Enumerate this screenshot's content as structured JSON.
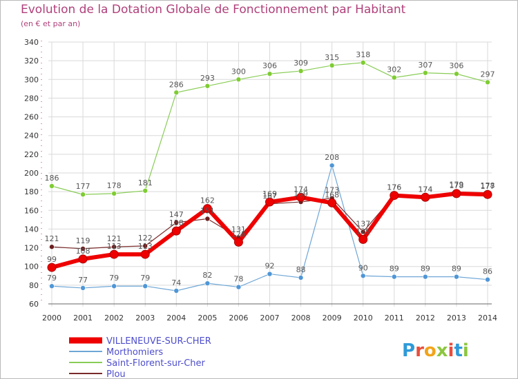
{
  "chart_data": {
    "type": "line",
    "title": "Evolution de la Dotation Globale de Fonctionnement par Habitant",
    "subtitle": "(en € et par an)",
    "xlabel": "",
    "ylabel": "",
    "ylim": [
      60,
      340
    ],
    "yticks": [
      60,
      80,
      100,
      120,
      140,
      160,
      180,
      200,
      220,
      240,
      260,
      280,
      300,
      320,
      340
    ],
    "categories": [
      "2000",
      "2001",
      "2002",
      "2003",
      "2004",
      "2005",
      "2006",
      "2007",
      "2008",
      "2009",
      "2010",
      "2011",
      "2012",
      "2013",
      "2014"
    ],
    "grid": true,
    "legend_position": "bottom-left",
    "series": [
      {
        "name": "Saint-Florent-sur-Cher",
        "color": "#88cc55",
        "point_color": "#7fcc33",
        "values": [
          186,
          177,
          178,
          181,
          286,
          293,
          300,
          306,
          309,
          315,
          318,
          302,
          307,
          306,
          297
        ]
      },
      {
        "name": "Morthomiers",
        "color": "#6ea6d6",
        "point_color": "#4f96d6",
        "values": [
          79,
          77,
          79,
          79,
          74,
          82,
          78,
          92,
          88,
          208,
          90,
          89,
          89,
          89,
          86
        ]
      },
      {
        "name": "Plou",
        "color": "#7a2a2a",
        "point_color": "#6b1f1f",
        "values": [
          121,
          119,
          121,
          122,
          147,
          151,
          131,
          167,
          169,
          173,
          137,
          176,
          174,
          179,
          178
        ]
      },
      {
        "name": "VILLENEUVE-SUR-CHER",
        "color": "#ee0000",
        "point_color": "#ee0000",
        "values": [
          99,
          108,
          113,
          113,
          138,
          162,
          126,
          169,
          174,
          168,
          129,
          176,
          174,
          178,
          177
        ]
      }
    ],
    "legend_order": [
      "VILLENEUVE-SUR-CHER",
      "Morthomiers",
      "Saint-Florent-sur-Cher",
      "Plou"
    ]
  },
  "branding": {
    "logo_text": "Proxiti"
  }
}
